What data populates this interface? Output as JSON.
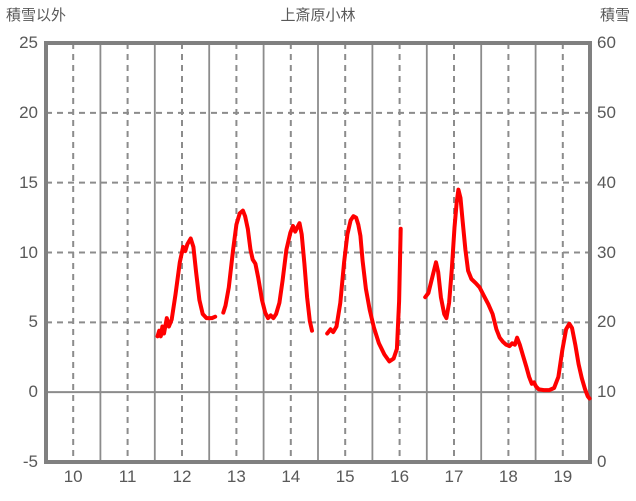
{
  "header": {
    "left_axis_title": "積雪以外",
    "chart_title": "上斎原小林",
    "right_axis_title": "積雪"
  },
  "colors": {
    "line": "#ff0000",
    "grid": "#8c8c8c",
    "border": "#808080",
    "text": "#595959",
    "background": "#ffffff"
  },
  "chart_data": {
    "type": "line",
    "title": "上斎原小林",
    "left_axis": {
      "title": "積雪以外",
      "min": -5,
      "max": 25,
      "tick_step": 5,
      "ticks": [
        "25",
        "20",
        "15",
        "10",
        "5",
        "0",
        "-5"
      ]
    },
    "right_axis": {
      "title": "積雪",
      "min": 0,
      "max": 60,
      "tick_step": 10,
      "ticks": [
        "60",
        "50",
        "40",
        "30",
        "20",
        "10",
        "0"
      ]
    },
    "x_axis": {
      "min": 10,
      "max": 20,
      "tick_labels": [
        "10",
        "11",
        "12",
        "13",
        "14",
        "15",
        "16",
        "17",
        "18",
        "19"
      ],
      "label_position": "interval-center",
      "grid_major": "solid",
      "grid_half": "dashed"
    },
    "grid": {
      "horizontal": "dashed",
      "zero_line": "solid"
    },
    "legend": "none",
    "series": [
      {
        "name": "積雪以外",
        "axis": "left",
        "color": "#ff0000",
        "stroke_width": 4,
        "segments": [
          [
            [
              12.05,
              4.0
            ],
            [
              12.08,
              4.4
            ],
            [
              12.11,
              4.0
            ],
            [
              12.14,
              4.7
            ],
            [
              12.17,
              4.2
            ],
            [
              12.22,
              5.3
            ],
            [
              12.26,
              4.7
            ],
            [
              12.31,
              5.2
            ],
            [
              12.38,
              7.0
            ],
            [
              12.46,
              9.3
            ],
            [
              12.52,
              10.4
            ],
            [
              12.56,
              10.1
            ],
            [
              12.6,
              10.6
            ],
            [
              12.66,
              11.0
            ],
            [
              12.71,
              10.4
            ],
            [
              12.76,
              8.6
            ],
            [
              12.82,
              6.6
            ],
            [
              12.88,
              5.6
            ],
            [
              12.95,
              5.3
            ],
            [
              13.05,
              5.3
            ],
            [
              13.11,
              5.4
            ]
          ],
          [
            [
              13.26,
              5.7
            ],
            [
              13.3,
              6.2
            ],
            [
              13.36,
              7.5
            ],
            [
              13.44,
              10.2
            ],
            [
              13.5,
              12.0
            ],
            [
              13.56,
              12.8
            ],
            [
              13.62,
              13.0
            ],
            [
              13.66,
              12.6
            ],
            [
              13.71,
              11.7
            ],
            [
              13.76,
              10.2
            ],
            [
              13.8,
              9.5
            ],
            [
              13.85,
              9.2
            ],
            [
              13.9,
              8.2
            ],
            [
              13.97,
              6.6
            ],
            [
              14.03,
              5.7
            ],
            [
              14.08,
              5.3
            ],
            [
              14.13,
              5.5
            ],
            [
              14.18,
              5.3
            ],
            [
              14.23,
              5.6
            ],
            [
              14.29,
              6.4
            ],
            [
              14.35,
              8.0
            ],
            [
              14.42,
              10.2
            ],
            [
              14.49,
              11.4
            ],
            [
              14.54,
              11.9
            ],
            [
              14.58,
              11.5
            ],
            [
              14.62,
              11.8
            ],
            [
              14.66,
              12.1
            ],
            [
              14.7,
              11.3
            ],
            [
              14.75,
              9.2
            ],
            [
              14.8,
              6.8
            ],
            [
              14.85,
              5.1
            ],
            [
              14.89,
              4.4
            ]
          ],
          [
            [
              15.17,
              4.2
            ],
            [
              15.23,
              4.5
            ],
            [
              15.28,
              4.3
            ],
            [
              15.34,
              4.7
            ],
            [
              15.41,
              6.4
            ],
            [
              15.48,
              9.3
            ],
            [
              15.54,
              11.3
            ],
            [
              15.6,
              12.3
            ],
            [
              15.65,
              12.6
            ],
            [
              15.7,
              12.5
            ],
            [
              15.74,
              12.0
            ],
            [
              15.78,
              11.2
            ],
            [
              15.82,
              9.4
            ],
            [
              15.88,
              7.4
            ],
            [
              15.95,
              5.9
            ],
            [
              16.03,
              4.6
            ],
            [
              16.12,
              3.5
            ],
            [
              16.22,
              2.7
            ],
            [
              16.31,
              2.2
            ],
            [
              16.39,
              2.4
            ],
            [
              16.45,
              3.1
            ],
            [
              16.49,
              6.5
            ],
            [
              16.52,
              11.7
            ]
          ],
          [
            [
              16.97,
              6.8
            ],
            [
              17.03,
              7.1
            ],
            [
              17.1,
              8.2
            ],
            [
              17.17,
              9.3
            ],
            [
              17.21,
              8.6
            ],
            [
              17.26,
              6.8
            ],
            [
              17.32,
              5.6
            ],
            [
              17.36,
              5.3
            ],
            [
              17.41,
              6.4
            ],
            [
              17.46,
              8.8
            ],
            [
              17.51,
              11.8
            ],
            [
              17.55,
              13.6
            ],
            [
              17.58,
              14.5
            ],
            [
              17.62,
              13.9
            ],
            [
              17.66,
              12.2
            ],
            [
              17.71,
              10.2
            ],
            [
              17.76,
              8.7
            ],
            [
              17.82,
              8.1
            ],
            [
              17.9,
              7.8
            ],
            [
              17.97,
              7.5
            ],
            [
              18.05,
              6.9
            ],
            [
              18.13,
              6.3
            ],
            [
              18.21,
              5.6
            ],
            [
              18.28,
              4.5
            ],
            [
              18.34,
              3.9
            ],
            [
              18.4,
              3.6
            ],
            [
              18.46,
              3.4
            ],
            [
              18.52,
              3.3
            ],
            [
              18.57,
              3.5
            ],
            [
              18.62,
              3.4
            ],
            [
              18.66,
              3.9
            ],
            [
              18.71,
              3.4
            ],
            [
              18.77,
              2.6
            ],
            [
              18.83,
              1.8
            ],
            [
              18.88,
              1.1
            ],
            [
              18.93,
              0.6
            ],
            [
              18.97,
              0.7
            ],
            [
              19.01,
              0.4
            ],
            [
              19.06,
              0.2
            ],
            [
              19.15,
              0.15
            ],
            [
              19.25,
              0.15
            ],
            [
              19.34,
              0.3
            ],
            [
              19.42,
              1.1
            ],
            [
              19.49,
              3.0
            ],
            [
              19.56,
              4.5
            ],
            [
              19.62,
              4.9
            ],
            [
              19.67,
              4.6
            ],
            [
              19.73,
              3.4
            ],
            [
              19.79,
              2.0
            ],
            [
              19.85,
              1.0
            ],
            [
              19.91,
              0.2
            ],
            [
              19.96,
              -0.3
            ],
            [
              19.99,
              -0.45
            ]
          ]
        ]
      }
    ]
  }
}
